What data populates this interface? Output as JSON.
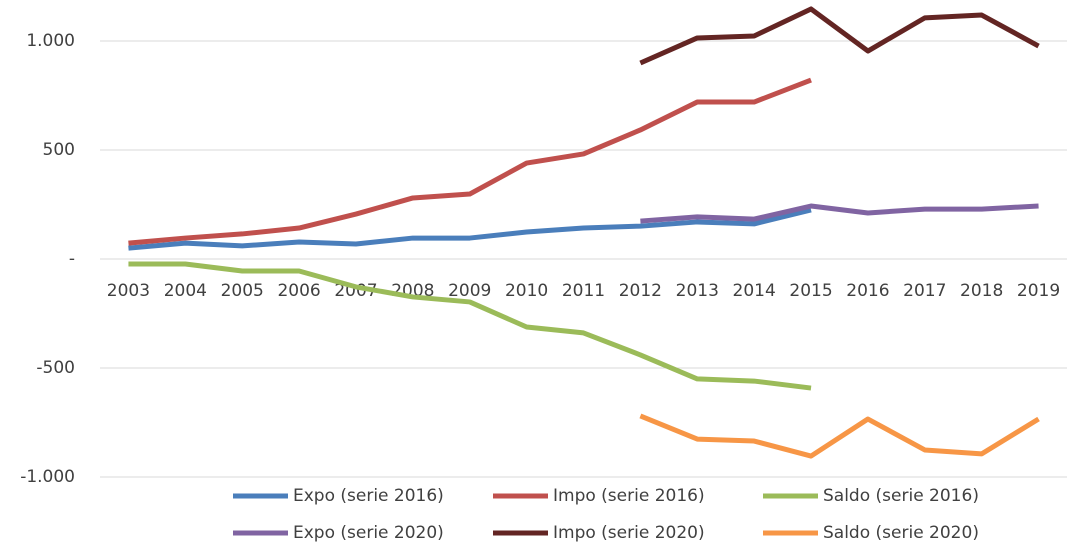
{
  "chart_data": {
    "type": "line",
    "categories": [
      "2003",
      "2004",
      "2005",
      "2006",
      "2007",
      "2008",
      "2009",
      "2010",
      "2011",
      "2012",
      "2013",
      "2014",
      "2015",
      "2016",
      "2017",
      "2018",
      "2019"
    ],
    "series": [
      {
        "name": "Expo (serie 2016)",
        "color": "#4a7ebb",
        "values": [
          50,
          73,
          60,
          78,
          69,
          96,
          96,
          124,
          142,
          151,
          170,
          161,
          225,
          null,
          null,
          null,
          null
        ]
      },
      {
        "name": "Impo (serie 2016)",
        "color": "#c0504d",
        "values": [
          73,
          96,
          115,
          142,
          206,
          280,
          298,
          440,
          482,
          592,
          720,
          720,
          821,
          null,
          null,
          null,
          null
        ]
      },
      {
        "name": "Saldo (serie 2016)",
        "color": "#9bbb59",
        "values": [
          -23,
          -23,
          -55,
          -55,
          -128,
          -174,
          -197,
          -312,
          -339,
          -440,
          -550,
          -560,
          -592,
          null,
          null,
          null,
          null
        ]
      },
      {
        "name": "Expo (serie 2020)",
        "color": "#8064a2",
        "values": [
          null,
          null,
          null,
          null,
          null,
          null,
          null,
          null,
          null,
          174,
          193,
          183,
          243,
          211,
          229,
          229,
          243
        ]
      },
      {
        "name": "Impo (serie 2020)",
        "color": "#632523",
        "values": [
          null,
          null,
          null,
          null,
          null,
          null,
          null,
          null,
          null,
          899,
          1014,
          1023,
          1147,
          954,
          1106,
          1119,
          977
        ]
      },
      {
        "name": "Saldo (serie 2020)",
        "color": "#f79646",
        "values": [
          null,
          null,
          null,
          null,
          null,
          null,
          null,
          null,
          null,
          -720,
          -826,
          -835,
          -904,
          -734,
          -876,
          -894,
          -734
        ]
      }
    ],
    "ylim": [
      -1000,
      1150
    ],
    "yticks": [
      {
        "value": 1000,
        "label": "1.000"
      },
      500,
      {
        "value": 0,
        "label": "-"
      },
      -500,
      {
        "value": -1000,
        "label": "-1.000"
      }
    ],
    "grid": true,
    "legend": "bottom"
  }
}
